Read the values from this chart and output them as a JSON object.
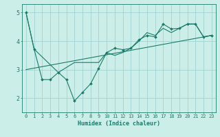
{
  "title": "",
  "xlabel": "Humidex (Indice chaleur)",
  "ylabel": "",
  "bg_color": "#cceee8",
  "line_color": "#1a7a6a",
  "grid_color": "#99cccc",
  "xlim": [
    -0.5,
    23.5
  ],
  "ylim": [
    1.5,
    5.3
  ],
  "yticks": [
    2,
    3,
    4,
    5
  ],
  "xticks": [
    0,
    1,
    2,
    3,
    4,
    5,
    6,
    7,
    8,
    9,
    10,
    11,
    12,
    13,
    14,
    15,
    16,
    17,
    18,
    19,
    20,
    21,
    22,
    23
  ],
  "series1_x": [
    0,
    1,
    2,
    3,
    4,
    5,
    6,
    7,
    8,
    9,
    10,
    11,
    12,
    13,
    14,
    15,
    16,
    17,
    18,
    19,
    20,
    21,
    22,
    23
  ],
  "series1_y": [
    5.0,
    3.72,
    2.65,
    2.65,
    2.9,
    2.65,
    1.9,
    2.2,
    2.5,
    3.05,
    3.6,
    3.75,
    3.7,
    3.75,
    4.05,
    4.2,
    4.15,
    4.6,
    4.43,
    4.45,
    4.6,
    4.6,
    4.15,
    4.2
  ],
  "series2_x": [
    0,
    1,
    4,
    6,
    9,
    10,
    11,
    12,
    13,
    14,
    15,
    16,
    17,
    18,
    19,
    20,
    21,
    22,
    23
  ],
  "series2_y": [
    5.0,
    3.72,
    2.9,
    3.25,
    3.25,
    3.6,
    3.5,
    3.6,
    3.75,
    4.0,
    4.3,
    4.2,
    4.45,
    4.3,
    4.45,
    4.6,
    4.6,
    4.15,
    4.2
  ],
  "series3_x": [
    0,
    23
  ],
  "series3_y": [
    3.0,
    4.2
  ],
  "font_family": "monospace",
  "tick_fontsize": 5.0,
  "xlabel_fontsize": 6.0
}
